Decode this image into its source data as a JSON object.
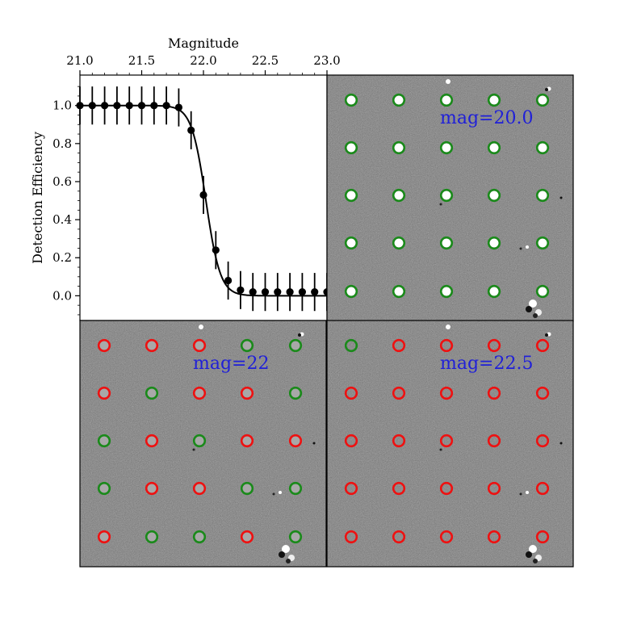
{
  "chart_data": {
    "type": "scatter",
    "xlabel": "Magnitude",
    "ylabel": "Detection Efficiency",
    "xlim": [
      21.0,
      23.0
    ],
    "ylim": [
      -0.13,
      1.16
    ],
    "x_ticks": [
      "21.0",
      "21.5",
      "22.0",
      "22.5",
      "23.0"
    ],
    "y_ticks": [
      "0.0",
      "0.2",
      "0.4",
      "0.6",
      "0.8",
      "1.0"
    ],
    "x_axis_position": "top",
    "grid": false,
    "points": {
      "x": [
        21.0,
        21.1,
        21.2,
        21.3,
        21.4,
        21.5,
        21.6,
        21.7,
        21.8,
        21.9,
        22.0,
        22.1,
        22.2,
        22.3,
        22.4,
        22.5,
        22.6,
        22.7,
        22.8,
        22.9,
        23.0
      ],
      "y": [
        1.0,
        1.0,
        1.0,
        1.0,
        1.0,
        1.0,
        1.0,
        1.0,
        0.99,
        0.87,
        0.53,
        0.24,
        0.08,
        0.03,
        0.02,
        0.02,
        0.02,
        0.02,
        0.02,
        0.02,
        0.02
      ],
      "yerr": [
        0.1,
        0.1,
        0.1,
        0.1,
        0.1,
        0.1,
        0.1,
        0.1,
        0.1,
        0.1,
        0.1,
        0.1,
        0.1,
        0.1,
        0.1,
        0.1,
        0.1,
        0.1,
        0.1,
        0.1,
        0.1
      ]
    },
    "fit_curve": {
      "type": "logistic",
      "x50": 22.02,
      "width": 0.058
    },
    "colors": {
      "marker": "#000000",
      "curve": "#000000"
    }
  },
  "panels": [
    {
      "label": "mag=20.0",
      "rings": [
        [
          "g",
          "g",
          "g",
          "g",
          "g"
        ],
        [
          "g",
          "g",
          "g",
          "g",
          "g"
        ],
        [
          "g",
          "g",
          "g",
          "g",
          "g"
        ],
        [
          "g",
          "g",
          "g",
          "g",
          "g"
        ],
        [
          "g",
          "g",
          "g",
          "g",
          "g"
        ]
      ],
      "source_brightness": "bright"
    },
    {
      "label": "mag=22",
      "rings": [
        [
          "r",
          "r",
          "r",
          "g",
          "g"
        ],
        [
          "r",
          "g",
          "r",
          "r",
          "g"
        ],
        [
          "g",
          "r",
          "g",
          "r",
          "r"
        ],
        [
          "g",
          "r",
          "r",
          "g",
          "g"
        ],
        [
          "r",
          "g",
          "g",
          "r",
          "g"
        ]
      ],
      "source_brightness": "faint"
    },
    {
      "label": "mag=22.5",
      "rings": [
        [
          "g",
          "r",
          "r",
          "r",
          "r"
        ],
        [
          "r",
          "r",
          "r",
          "r",
          "r"
        ],
        [
          "r",
          "r",
          "r",
          "r",
          "r"
        ],
        [
          "r",
          "r",
          "r",
          "r",
          "r"
        ],
        [
          "r",
          "r",
          "r",
          "r",
          "r"
        ]
      ],
      "source_brightness": "none"
    }
  ],
  "colors": {
    "detected_ring": "#1a8a1a",
    "missed_ring": "#ee1111",
    "panel_label": "#2020d8",
    "image_background": "#7f7f7f"
  }
}
